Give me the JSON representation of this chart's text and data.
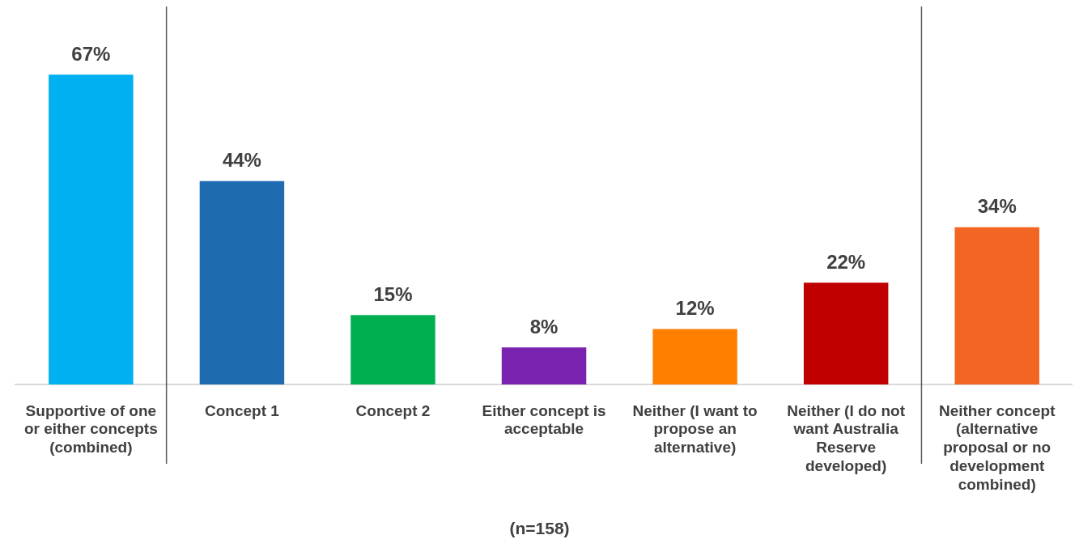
{
  "chart_data": {
    "type": "bar",
    "categories": [
      "Supportive of one or either concepts (combined)",
      "Concept 1",
      "Concept 2",
      "Either concept is acceptable",
      "Neither (I want to propose an alternative)",
      "Neither (I do not want Australia Reserve developed)",
      "Neither concept (alternative proposal or no development combined)"
    ],
    "values": [
      67,
      44,
      15,
      8,
      12,
      22,
      34
    ],
    "colors": [
      "#00b0f0",
      "#1f6bb0",
      "#00b050",
      "#7a23b0",
      "#ff8000",
      "#c00000",
      "#f26522"
    ],
    "value_labels": [
      "67%",
      "44%",
      "15%",
      "8%",
      "12%",
      "22%",
      "34%"
    ],
    "annotations": [
      "(n=158)"
    ],
    "tick_labels": "x",
    "grid": false,
    "legend": false
  }
}
